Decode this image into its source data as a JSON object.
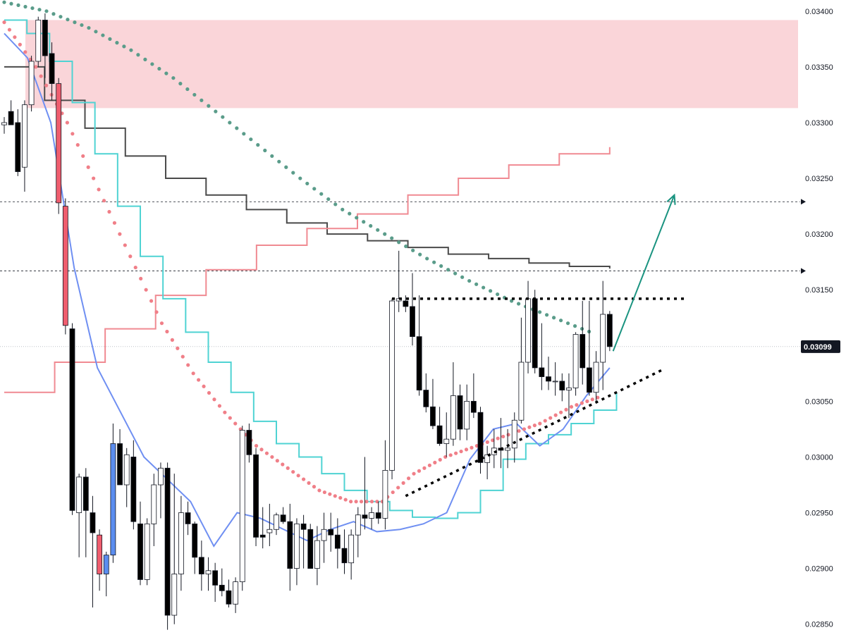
{
  "colors": {
    "background": "#ffffff",
    "up_body": "#ffffff",
    "down_body": "#000000",
    "wick": "#131722",
    "red_candle": "#ef5d6e",
    "blue_candle": "#5b8def",
    "zone_fill": "#f8c7cc",
    "ma_dark": "#4a4a4a",
    "ma_pink": "#f08a92",
    "ma_cyan": "#4fd3d3",
    "ma_blue": "#6f8ff2",
    "dots_teal": "#5a9c8a",
    "dots_red": "#f07f88",
    "arrow_teal": "#1a9380",
    "price_tag_bg": "#131722"
  },
  "chart_data": {
    "type": "candlestick",
    "y_axis": {
      "position": "right",
      "ylim": [
        0.02834,
        0.0341
      ],
      "ticks": [
        "0.03400",
        "0.03350",
        "0.03300",
        "0.03250",
        "0.03200",
        "0.03150",
        "0.03100",
        "0.03050",
        "0.03000",
        "0.02950",
        "0.02900",
        "0.02850"
      ]
    },
    "current_price": {
      "value": "0.03099",
      "numeric": 0.03099
    },
    "grid": false,
    "candles_ohlc": [
      [
        0.033,
        0.03305,
        0.0329,
        0.03298,
        "up"
      ],
      [
        0.0331,
        0.0332,
        0.033,
        0.03298,
        "down"
      ],
      [
        0.033,
        0.03312,
        0.03252,
        0.03256,
        "down"
      ],
      [
        0.0326,
        0.0332,
        0.03238,
        0.03316,
        "up"
      ],
      [
        0.03316,
        0.0336,
        0.0331,
        0.03355,
        "up"
      ],
      [
        0.03355,
        0.03395,
        0.0335,
        0.03392,
        "up"
      ],
      [
        0.03392,
        0.03398,
        0.0334,
        0.0336,
        "down"
      ],
      [
        0.03362,
        0.03372,
        0.0332,
        0.03335,
        "down"
      ],
      [
        0.03335,
        0.0334,
        0.03218,
        0.03228,
        "down_red"
      ],
      [
        0.03225,
        0.03232,
        0.0311,
        0.03118,
        "down_red"
      ],
      [
        0.03115,
        0.0312,
        0.02948,
        0.02952,
        "down"
      ],
      [
        0.0295,
        0.02985,
        0.0291,
        0.02982,
        "up"
      ],
      [
        0.02982,
        0.0299,
        0.0291,
        0.02952,
        "down"
      ],
      [
        0.0295,
        0.02965,
        0.02865,
        0.02932,
        "down"
      ],
      [
        0.0293,
        0.02935,
        0.0288,
        0.02895,
        "down_red"
      ],
      [
        0.02895,
        0.02915,
        0.02875,
        0.02912,
        "up_blue"
      ],
      [
        0.02912,
        0.0303,
        0.02905,
        0.03012,
        "up_blue"
      ],
      [
        0.03012,
        0.03025,
        0.02975,
        0.02975,
        "down"
      ],
      [
        0.02975,
        0.03008,
        0.02955,
        0.03002,
        "up"
      ],
      [
        0.03,
        0.03015,
        0.02935,
        0.02942,
        "down"
      ],
      [
        0.0294,
        0.0296,
        0.02885,
        0.0289,
        "down"
      ],
      [
        0.0289,
        0.02945,
        0.02885,
        0.0294,
        "up"
      ],
      [
        0.0294,
        0.02985,
        0.0292,
        0.02975,
        "up"
      ],
      [
        0.02975,
        0.02995,
        0.02945,
        0.0299,
        "up"
      ],
      [
        0.0299,
        0.02995,
        0.02845,
        0.02858,
        "down"
      ],
      [
        0.02858,
        0.02985,
        0.0285,
        0.02895,
        "up"
      ],
      [
        0.02895,
        0.02965,
        0.0288,
        0.0295,
        "up"
      ],
      [
        0.0295,
        0.0296,
        0.0293,
        0.0294,
        "down"
      ],
      [
        0.0294,
        0.02942,
        0.02895,
        0.0291,
        "down"
      ],
      [
        0.0291,
        0.02925,
        0.0288,
        0.02895,
        "down"
      ],
      [
        0.02895,
        0.0291,
        0.0288,
        0.02898,
        "up"
      ],
      [
        0.02898,
        0.02905,
        0.0287,
        0.02885,
        "down"
      ],
      [
        0.02885,
        0.029,
        0.02875,
        0.0288,
        "down"
      ],
      [
        0.0288,
        0.0289,
        0.02865,
        0.02868,
        "down"
      ],
      [
        0.02868,
        0.02892,
        0.0286,
        0.02888,
        "up"
      ],
      [
        0.02888,
        0.03028,
        0.0288,
        0.03024,
        "up"
      ],
      [
        0.03024,
        0.0303,
        0.02995,
        0.03002,
        "down"
      ],
      [
        0.03002,
        0.03008,
        0.0292,
        0.02928,
        "down"
      ],
      [
        0.02928,
        0.02955,
        0.02918,
        0.0293,
        "down"
      ],
      [
        0.02932,
        0.02958,
        0.0292,
        0.02935,
        "up"
      ],
      [
        0.02935,
        0.0295,
        0.0293,
        0.02948,
        "up"
      ],
      [
        0.02948,
        0.02955,
        0.0294,
        0.02942,
        "down"
      ],
      [
        0.02942,
        0.02958,
        0.0288,
        0.029,
        "down"
      ],
      [
        0.029,
        0.02945,
        0.02885,
        0.0294,
        "up"
      ],
      [
        0.0294,
        0.02948,
        0.029,
        0.02935,
        "down"
      ],
      [
        0.02935,
        0.0294,
        0.029,
        0.029,
        "down"
      ],
      [
        0.029,
        0.02938,
        0.02885,
        0.02925,
        "up"
      ],
      [
        0.02925,
        0.0295,
        0.02905,
        0.02935,
        "up"
      ],
      [
        0.02935,
        0.0295,
        0.02915,
        0.0293,
        "down"
      ],
      [
        0.0293,
        0.02945,
        0.029,
        0.02918,
        "down"
      ],
      [
        0.02918,
        0.02935,
        0.02895,
        0.02905,
        "down"
      ],
      [
        0.02905,
        0.02935,
        0.0289,
        0.0293,
        "up"
      ],
      [
        0.0293,
        0.02955,
        0.0291,
        0.02948,
        "up"
      ],
      [
        0.02948,
        0.03,
        0.02935,
        0.02945,
        "down"
      ],
      [
        0.02945,
        0.02955,
        0.02935,
        0.0295,
        "up"
      ],
      [
        0.0295,
        0.0296,
        0.0294,
        0.02945,
        "down"
      ],
      [
        0.02945,
        0.03015,
        0.02935,
        0.02988,
        "up"
      ],
      [
        0.02988,
        0.03142,
        0.0298,
        0.0314,
        "up"
      ],
      [
        0.0314,
        0.03185,
        0.0313,
        0.03142,
        "up"
      ],
      [
        0.0314,
        0.03145,
        0.0313,
        0.03135,
        "down"
      ],
      [
        0.03135,
        0.03165,
        0.031,
        0.03108,
        "down"
      ],
      [
        0.03108,
        0.03145,
        0.03055,
        0.0306,
        "down"
      ],
      [
        0.0306,
        0.03075,
        0.0304,
        0.03045,
        "down"
      ],
      [
        0.03045,
        0.0307,
        0.03025,
        0.03028,
        "down"
      ],
      [
        0.03028,
        0.03045,
        0.0301,
        0.03012,
        "down"
      ],
      [
        0.03012,
        0.0304,
        0.03,
        0.03016,
        "up"
      ],
      [
        0.03016,
        0.03085,
        0.0301,
        0.03055,
        "up"
      ],
      [
        0.03055,
        0.03065,
        0.03015,
        0.03025,
        "down"
      ],
      [
        0.03025,
        0.03065,
        0.03015,
        0.0305,
        "up"
      ],
      [
        0.0305,
        0.03075,
        0.03035,
        0.0304,
        "down"
      ],
      [
        0.0304,
        0.03045,
        0.02985,
        0.02995,
        "down"
      ],
      [
        0.02995,
        0.0301,
        0.0298,
        0.03002,
        "up"
      ],
      [
        0.03002,
        0.03025,
        0.0299,
        0.03008,
        "up"
      ],
      [
        0.03008,
        0.03035,
        0.0299,
        0.03006,
        "down"
      ],
      [
        0.03006,
        0.03025,
        0.0299,
        0.03008,
        "up"
      ],
      [
        0.03008,
        0.0304,
        0.02995,
        0.03033,
        "up"
      ],
      [
        0.03033,
        0.03125,
        0.0303,
        0.03085,
        "up"
      ],
      [
        0.03085,
        0.03158,
        0.03075,
        0.03142,
        "up"
      ],
      [
        0.03142,
        0.0315,
        0.03075,
        0.0308,
        "down"
      ],
      [
        0.0308,
        0.0312,
        0.0306,
        0.03072,
        "down"
      ],
      [
        0.03072,
        0.0309,
        0.0306,
        0.03068,
        "down"
      ],
      [
        0.03068,
        0.03085,
        0.03055,
        0.03068,
        "up"
      ],
      [
        0.03068,
        0.03075,
        0.0305,
        0.0306,
        "down"
      ],
      [
        0.0306,
        0.03075,
        0.03035,
        0.03062,
        "up"
      ],
      [
        0.03062,
        0.03112,
        0.03055,
        0.0311,
        "up"
      ],
      [
        0.0311,
        0.0314,
        0.03065,
        0.0308,
        "down"
      ],
      [
        0.0308,
        0.0314,
        0.03055,
        0.03058,
        "down"
      ],
      [
        0.03058,
        0.03095,
        0.0305,
        0.03085,
        "up"
      ],
      [
        0.03085,
        0.03158,
        0.0306,
        0.03128,
        "up"
      ],
      [
        0.03128,
        0.03131,
        0.03095,
        0.03099,
        "down"
      ]
    ],
    "horizontal_levels": [
      0.03229,
      0.03167
    ],
    "resistance_line": {
      "from": [
        57,
        0.03142
      ],
      "to": [
        89,
        0.03142
      ]
    },
    "support_line": {
      "from": [
        59,
        0.02965
      ],
      "to": [
        97,
        0.03079
      ]
    },
    "supply_zone": {
      "top": 0.03392,
      "bottom": 0.03313
    },
    "arrow": {
      "from": [
        89.5,
        0.03095
      ],
      "to": [
        98.5,
        0.03235
      ]
    },
    "ma_dark": {
      "start": 0,
      "values": [
        0.0335,
        0.0332,
        0.03295,
        0.0327,
        0.0325,
        0.03235,
        0.03222,
        0.0321,
        0.032,
        0.03194,
        0.03188,
        0.03182,
        0.03178,
        0.03174,
        0.03171,
        0.03169
      ]
    },
    "ma_pink": {
      "start": 0,
      "values": [
        0.03058,
        0.03085,
        0.03115,
        0.03145,
        0.03168,
        0.0319,
        0.03205,
        0.03218,
        0.03235,
        0.0325,
        0.03262,
        0.03272,
        0.03278
      ]
    },
    "ma_cyan": {
      "start": 0,
      "values": [
        0.03392,
        0.0338,
        0.03355,
        0.03318,
        0.03272,
        0.03225,
        0.0318,
        0.03142,
        0.03112,
        0.03085,
        0.03058,
        0.03032,
        0.03012,
        0.03,
        0.02985,
        0.0297,
        0.0296,
        0.02952,
        0.02946,
        0.02945,
        0.0295,
        0.0297,
        0.02998,
        0.03012,
        0.0302,
        0.0303,
        0.03042,
        0.03058
      ]
    },
    "ma_blue": {
      "start": 0,
      "values": [
        0.0338,
        0.03358,
        0.033,
        0.0317,
        0.0308,
        0.0304,
        0.03,
        0.0298,
        0.0296,
        0.0292,
        0.0295,
        0.02945,
        0.02935,
        0.02925,
        0.02935,
        0.02942,
        0.02933,
        0.02935,
        0.0294,
        0.0295,
        0.02998,
        0.03025,
        0.0303,
        0.0301,
        0.03025,
        0.03055,
        0.0308
      ]
    },
    "dots_teal": {
      "start": 0,
      "values": [
        0.03408,
        0.034,
        0.03385,
        0.03365,
        0.0334,
        0.0331,
        0.0328,
        0.0325,
        0.03222,
        0.032,
        0.03178,
        0.03158,
        0.0314,
        0.03125,
        0.0311
      ]
    },
    "dots_red": {
      "start": 0,
      "values": [
        0.0339,
        0.0335,
        0.033,
        0.0324,
        0.0318,
        0.0312,
        0.03075,
        0.0304,
        0.0301,
        0.0299,
        0.0297,
        0.0296,
        0.0296,
        0.02985,
        0.03,
        0.0301,
        0.0302,
        0.0303,
        0.03045,
        0.03055
      ]
    }
  }
}
